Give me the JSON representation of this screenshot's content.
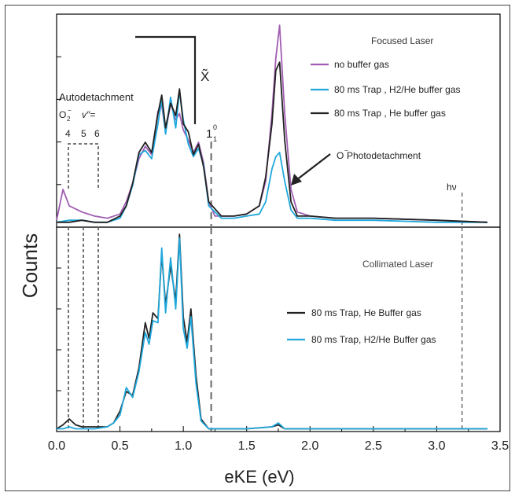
{
  "figure": {
    "ylabel": "Counts",
    "xlabel": "eKE (eV)",
    "x_ticks": [
      "0.0",
      "0.5",
      "1.0",
      "1.5",
      "2.0",
      "2.5",
      "3.0",
      "3.5"
    ]
  },
  "annotations": {
    "x_tilde": "X̃",
    "autodetachment": "Autodetachment",
    "o2_label": "O",
    "o2_sub": "2",
    "o2_sup": "−",
    "v_label": "v″=",
    "v_levels": [
      "4",
      "5",
      "6"
    ],
    "one_one_base": "1",
    "one_one_sub": "1",
    "one_one_sup": "0",
    "o_minus": "O",
    "o_minus_sup": "−",
    "o_minus_text": " Photodetachment",
    "hv": "hν"
  },
  "colors": {
    "purple": "#a15eb2",
    "cyan": "#20a8dc",
    "black": "#222222",
    "dashed": "#666666"
  },
  "chart_data": [
    {
      "type": "line",
      "panel": "top",
      "title": "Focused Laser",
      "xlim": [
        0.0,
        3.5
      ],
      "ylim": [
        0,
        1.0
      ],
      "series": [
        {
          "name": "no buffer gas",
          "color": "#a15eb2",
          "x": [
            0.0,
            0.05,
            0.1,
            0.2,
            0.3,
            0.4,
            0.5,
            0.55,
            0.6,
            0.65,
            0.7,
            0.75,
            0.8,
            0.83,
            0.86,
            0.9,
            0.94,
            0.97,
            1.0,
            1.04,
            1.08,
            1.12,
            1.16,
            1.2,
            1.25,
            1.3,
            1.4,
            1.5,
            1.6,
            1.65,
            1.7,
            1.73,
            1.76,
            1.8,
            1.85,
            1.9,
            2.0,
            2.2,
            2.5,
            3.0,
            3.4
          ],
          "y": [
            0.03,
            0.18,
            0.1,
            0.07,
            0.05,
            0.04,
            0.06,
            0.12,
            0.21,
            0.33,
            0.39,
            0.35,
            0.56,
            0.59,
            0.46,
            0.6,
            0.52,
            0.55,
            0.47,
            0.42,
            0.36,
            0.41,
            0.31,
            0.12,
            0.05,
            0.05,
            0.05,
            0.06,
            0.1,
            0.22,
            0.55,
            0.82,
            0.98,
            0.55,
            0.18,
            0.07,
            0.05,
            0.04,
            0.04,
            0.03,
            0.02
          ]
        },
        {
          "name": "80 ms Trap , H2/He buffer gas",
          "color": "#20a8dc",
          "x": [
            0.0,
            0.1,
            0.2,
            0.3,
            0.4,
            0.5,
            0.55,
            0.6,
            0.65,
            0.7,
            0.75,
            0.8,
            0.83,
            0.86,
            0.9,
            0.94,
            0.97,
            1.0,
            1.04,
            1.08,
            1.12,
            1.16,
            1.2,
            1.3,
            1.4,
            1.5,
            1.6,
            1.65,
            1.7,
            1.73,
            1.76,
            1.8,
            1.85,
            1.9,
            2.0,
            2.2,
            2.5,
            3.0,
            3.4
          ],
          "y": [
            0.02,
            0.03,
            0.03,
            0.02,
            0.02,
            0.04,
            0.1,
            0.2,
            0.35,
            0.37,
            0.33,
            0.5,
            0.62,
            0.45,
            0.63,
            0.48,
            0.66,
            0.52,
            0.4,
            0.34,
            0.38,
            0.3,
            0.1,
            0.04,
            0.04,
            0.05,
            0.06,
            0.12,
            0.28,
            0.34,
            0.36,
            0.22,
            0.08,
            0.04,
            0.04,
            0.03,
            0.03,
            0.02,
            0.02
          ]
        },
        {
          "name": "80 ms Trap , He buffer gas",
          "color": "#222222",
          "x": [
            0.0,
            0.1,
            0.2,
            0.3,
            0.4,
            0.5,
            0.55,
            0.6,
            0.65,
            0.7,
            0.75,
            0.8,
            0.83,
            0.86,
            0.9,
            0.94,
            0.97,
            1.0,
            1.04,
            1.08,
            1.12,
            1.16,
            1.2,
            1.3,
            1.4,
            1.5,
            1.6,
            1.65,
            1.7,
            1.73,
            1.76,
            1.8,
            1.85,
            1.9,
            2.0,
            2.2,
            2.5,
            3.0,
            3.4
          ],
          "y": [
            0.02,
            0.02,
            0.03,
            0.02,
            0.02,
            0.05,
            0.1,
            0.21,
            0.36,
            0.41,
            0.36,
            0.55,
            0.64,
            0.48,
            0.6,
            0.54,
            0.67,
            0.5,
            0.46,
            0.35,
            0.4,
            0.29,
            0.12,
            0.05,
            0.05,
            0.06,
            0.1,
            0.24,
            0.5,
            0.76,
            0.8,
            0.42,
            0.12,
            0.05,
            0.05,
            0.04,
            0.04,
            0.03,
            0.02
          ]
        }
      ]
    },
    {
      "type": "line",
      "panel": "bottom",
      "title": "Collimated Laser",
      "xlim": [
        0.0,
        3.5
      ],
      "ylim": [
        0,
        1.0
      ],
      "series": [
        {
          "name": "80 ms Trap, He Buffer gas",
          "color": "#222222",
          "x": [
            0.0,
            0.05,
            0.1,
            0.15,
            0.2,
            0.3,
            0.4,
            0.45,
            0.5,
            0.55,
            0.6,
            0.65,
            0.7,
            0.73,
            0.76,
            0.8,
            0.83,
            0.86,
            0.9,
            0.94,
            0.97,
            1.0,
            1.03,
            1.06,
            1.1,
            1.14,
            1.2,
            1.3,
            1.5,
            1.7,
            1.75,
            1.8,
            2.0,
            2.5,
            3.0,
            3.4
          ],
          "y": [
            0.01,
            0.03,
            0.06,
            0.03,
            0.02,
            0.02,
            0.02,
            0.04,
            0.1,
            0.2,
            0.18,
            0.32,
            0.55,
            0.47,
            0.6,
            0.57,
            0.9,
            0.64,
            0.84,
            0.66,
            1.0,
            0.58,
            0.45,
            0.62,
            0.28,
            0.06,
            0.01,
            0.01,
            0.01,
            0.02,
            0.03,
            0.01,
            0.01,
            0.01,
            0.01,
            0.01
          ]
        },
        {
          "name": "80 ms Trap, H2/He Buffer gas",
          "color": "#20a8dc",
          "x": [
            0.0,
            0.05,
            0.1,
            0.15,
            0.2,
            0.3,
            0.4,
            0.45,
            0.5,
            0.55,
            0.6,
            0.65,
            0.7,
            0.73,
            0.76,
            0.8,
            0.83,
            0.86,
            0.9,
            0.94,
            0.97,
            1.0,
            1.03,
            1.06,
            1.1,
            1.14,
            1.2,
            1.3,
            1.5,
            1.7,
            1.75,
            1.8,
            2.0,
            2.5,
            3.0,
            3.4
          ],
          "y": [
            0.01,
            0.01,
            0.02,
            0.01,
            0.01,
            0.01,
            0.02,
            0.04,
            0.08,
            0.22,
            0.17,
            0.3,
            0.5,
            0.44,
            0.56,
            0.55,
            0.93,
            0.6,
            0.88,
            0.62,
            0.98,
            0.52,
            0.42,
            0.58,
            0.24,
            0.05,
            0.01,
            0.01,
            0.01,
            0.02,
            0.04,
            0.01,
            0.01,
            0.01,
            0.01,
            0.01
          ]
        }
      ]
    }
  ]
}
